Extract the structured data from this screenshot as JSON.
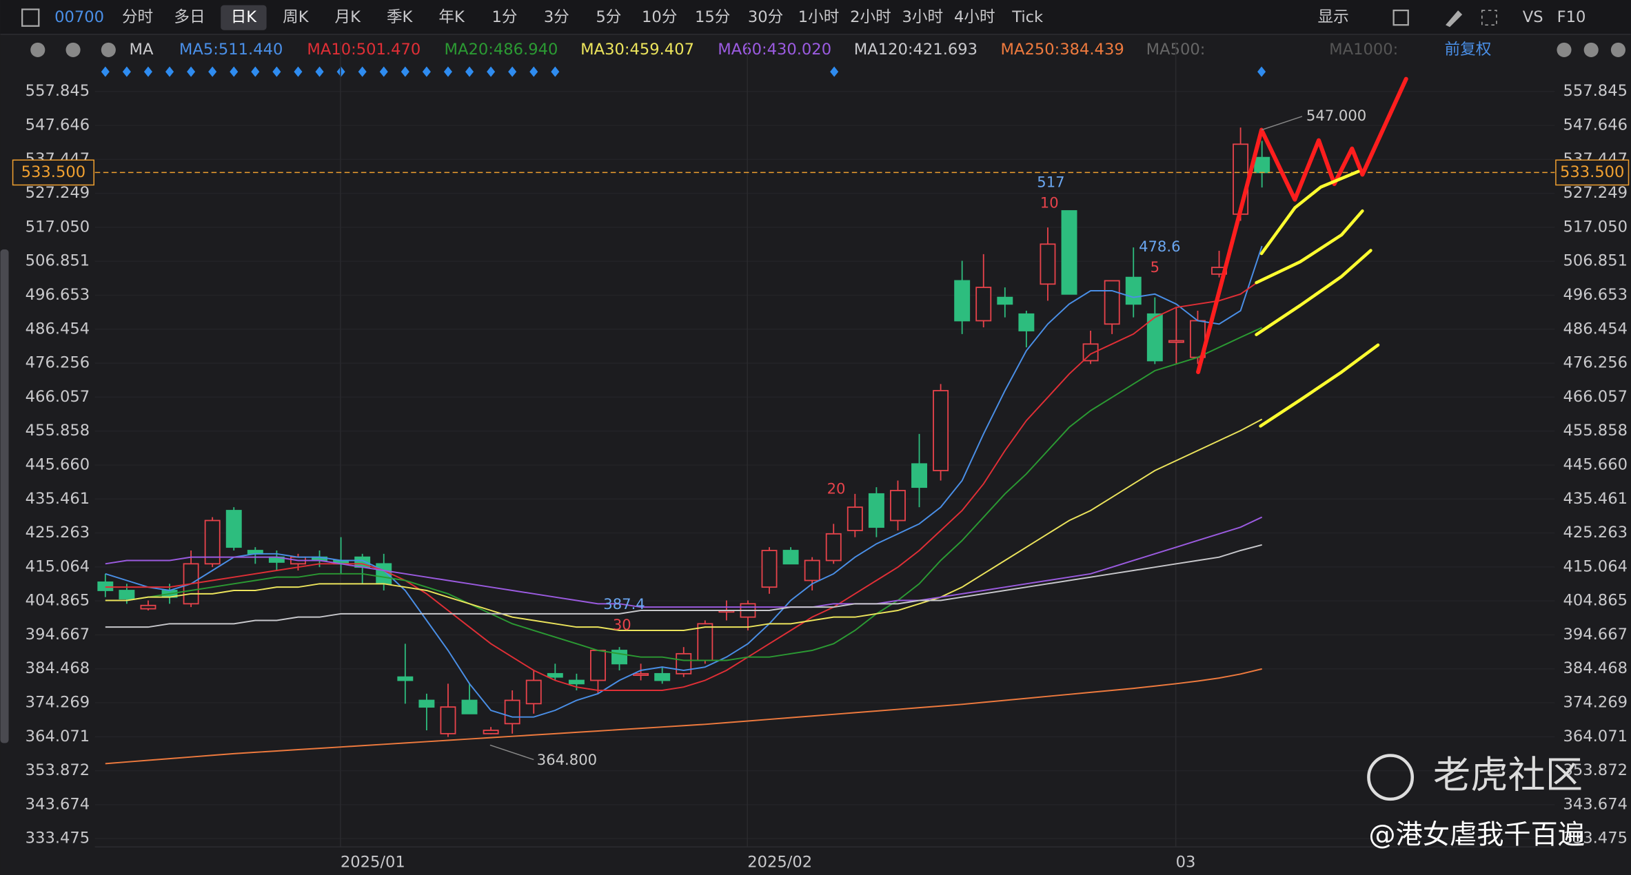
{
  "toolbar": {
    "symbol": "00700",
    "periods": [
      "分时",
      "多日",
      "日K",
      "周K",
      "月K",
      "季K",
      "年K",
      "1分",
      "3分",
      "5分",
      "10分",
      "15分",
      "30分",
      "1小时",
      "2小时",
      "3小时",
      "4小时",
      "Tick"
    ],
    "right": [
      "显示",
      "VS",
      "F10"
    ]
  },
  "ma_bar": {
    "label": "MA",
    "inactive": [
      "MA500:",
      "MA1000:"
    ],
    "adjust": "前复权"
  },
  "watermark": {
    "brand": "老虎社区",
    "user": "@港女虐我千百遍"
  },
  "chart_data": {
    "type": "candlestick",
    "grid": true,
    "categories": [
      null,
      null,
      null,
      null,
      null,
      null,
      null,
      null,
      null,
      null,
      null,
      "2025/01",
      null,
      null,
      null,
      null,
      null,
      null,
      null,
      null,
      null,
      null,
      null,
      null,
      null,
      null,
      null,
      null,
      null,
      null,
      "2025/02",
      null,
      null,
      null,
      null,
      null,
      null,
      null,
      null,
      null,
      null,
      null,
      null,
      null,
      null,
      null,
      null,
      null,
      null,
      null,
      "03",
      null,
      null,
      null,
      null
    ],
    "open": [
      410.5,
      408,
      402.5,
      408,
      404,
      416,
      432,
      420,
      418,
      416,
      418,
      417,
      418,
      416,
      382,
      375,
      365,
      375,
      365,
      368,
      374,
      383,
      381,
      381,
      390,
      383,
      383,
      383,
      387,
      402,
      400,
      409,
      420,
      411,
      417,
      426,
      437,
      429,
      446,
      444,
      501,
      489,
      496,
      491,
      500,
      522,
      477,
      488,
      502,
      491,
      483,
      478,
      503,
      521,
      538
    ],
    "high": [
      413,
      410,
      405,
      410,
      420,
      430,
      433,
      421,
      420,
      419,
      420,
      424,
      419,
      419,
      392,
      377,
      380,
      380,
      367,
      378,
      384,
      386,
      383,
      390,
      391,
      386,
      385,
      391,
      399,
      405,
      405,
      421,
      421,
      418,
      428,
      437,
      439,
      441,
      455,
      470,
      507,
      509,
      499,
      492,
      517,
      522,
      486,
      500,
      511,
      496,
      493,
      492,
      510,
      547,
      543
    ],
    "low": [
      406,
      404,
      402,
      404,
      403,
      415,
      420,
      416,
      414,
      414,
      415,
      413,
      410,
      408,
      374,
      366,
      364,
      371,
      364.8,
      365,
      371,
      381,
      378,
      377,
      384,
      381,
      380,
      382,
      386,
      399,
      396,
      407,
      416,
      408,
      416,
      424,
      424,
      426,
      433,
      441,
      485,
      487,
      490,
      481,
      495,
      497,
      476,
      485,
      490,
      476,
      476,
      476,
      502,
      519,
      529
    ],
    "close": [
      408,
      405.5,
      403.5,
      406,
      416,
      429,
      421,
      419,
      416.5,
      418,
      417,
      416,
      415,
      410,
      381,
      373,
      373,
      371,
      366,
      375,
      381,
      382,
      380,
      390,
      386,
      383,
      381,
      389,
      398,
      402,
      404,
      420,
      416,
      417,
      425,
      433,
      427,
      438,
      439,
      468,
      489,
      499,
      494,
      486,
      512,
      497,
      482,
      501,
      494,
      477,
      483,
      489,
      505,
      542,
      533.5
    ],
    "up_color": "#e8434b",
    "down_color": "#2dbd7e",
    "series": [
      {
        "name": "MA5:511.440",
        "color": "#4a8fe7",
        "values": [
          413,
          411,
          409,
          408,
          410,
          414,
          418,
          419,
          419,
          418,
          418,
          417,
          417,
          414,
          408,
          399,
          390,
          380,
          372,
          370,
          370,
          372,
          375,
          377,
          381,
          384,
          385,
          384,
          385,
          388,
          392,
          398,
          405,
          410,
          413,
          418,
          422,
          425,
          428,
          433,
          441,
          455,
          468,
          480,
          488,
          494,
          498,
          498,
          496,
          497,
          494,
          489,
          488,
          492,
          511.44
        ]
      },
      {
        "name": "MA10:501.470",
        "color": "#e02f36",
        "values": [
          409,
          409,
          409,
          409,
          410,
          411,
          412,
          413,
          414,
          415,
          416,
          416,
          416,
          414,
          411,
          407,
          402,
          397,
          392,
          388,
          384,
          381,
          379,
          378,
          378,
          378,
          378,
          379,
          381,
          384,
          388,
          392,
          396,
          400,
          403,
          407,
          411,
          415,
          420,
          426,
          432,
          440,
          450,
          459,
          466,
          473,
          479,
          482,
          485,
          490,
          493,
          494,
          495,
          497,
          501.47
        ]
      },
      {
        "name": "MA20:486.940",
        "color": "#2b9a33",
        "values": [
          405,
          405,
          406,
          407,
          408,
          409,
          410,
          411,
          412,
          412,
          413,
          413,
          413,
          412,
          411,
          409,
          407,
          404,
          401,
          398,
          396,
          394,
          392,
          390,
          389,
          388,
          388,
          387,
          387,
          387,
          388,
          388,
          389,
          390,
          392,
          396,
          401,
          405,
          410,
          417,
          423,
          430,
          437,
          443,
          450,
          457,
          462,
          466,
          470,
          474,
          476,
          478,
          481,
          484,
          486.94
        ]
      },
      {
        "name": "MA30:459.407",
        "color": "#ece45c",
        "values": [
          405,
          405,
          406,
          406,
          407,
          407,
          408,
          408,
          409,
          409,
          410,
          410,
          410,
          410,
          409,
          408,
          406,
          404,
          402,
          400,
          399,
          398,
          397,
          397,
          396,
          396,
          396,
          396,
          397,
          397,
          397,
          398,
          398,
          399,
          400,
          400,
          401,
          402,
          404,
          406,
          409,
          413,
          417,
          421,
          425,
          429,
          432,
          436,
          440,
          444,
          447,
          450,
          453,
          456,
          459.407
        ]
      },
      {
        "name": "MA60:430.020",
        "color": "#9b5be0",
        "values": [
          416,
          417,
          417,
          417,
          418,
          418,
          418,
          418,
          418,
          417,
          417,
          416,
          415,
          414,
          413,
          412,
          411,
          410,
          409,
          408,
          407,
          406,
          405,
          404,
          404,
          403,
          403,
          403,
          403,
          403,
          403,
          403,
          403,
          403,
          404,
          404,
          404,
          405,
          405,
          406,
          407,
          408,
          409,
          410,
          411,
          412,
          413,
          415,
          417,
          419,
          421,
          423,
          425,
          427,
          430.02
        ]
      },
      {
        "name": "MA120:421.693",
        "color": "#c8c8cc",
        "values": [
          397,
          397,
          397,
          398,
          398,
          398,
          398,
          399,
          399,
          400,
          400,
          401,
          401,
          401,
          401,
          401,
          401,
          401,
          401,
          401,
          401,
          401,
          401,
          401,
          401,
          402,
          402,
          402,
          402,
          402,
          402,
          402,
          403,
          403,
          403,
          404,
          404,
          404,
          405,
          405,
          406,
          407,
          408,
          409,
          410,
          411,
          412,
          413,
          414,
          415,
          416,
          417,
          418,
          420,
          421.693
        ]
      },
      {
        "name": "MA250:384.439",
        "color": "#ee7a3e",
        "values": [
          356,
          356.5,
          357,
          357.5,
          358,
          358.5,
          359,
          359.4,
          359.8,
          360.2,
          360.6,
          361,
          361.4,
          361.8,
          362.2,
          362.6,
          363,
          363.4,
          363.8,
          364.2,
          364.6,
          365,
          365.4,
          365.8,
          366.2,
          366.6,
          367,
          367.4,
          367.8,
          368.3,
          368.8,
          369.3,
          369.8,
          370.3,
          370.8,
          371.3,
          371.8,
          372.3,
          372.8,
          373.3,
          373.8,
          374.4,
          375,
          375.6,
          376.2,
          376.8,
          377.4,
          378,
          378.6,
          379.3,
          380,
          380.8,
          381.7,
          382.9,
          384.439
        ]
      }
    ],
    "ylim": [
      330.98,
      561.9
    ],
    "yticks": [
      557.845,
      547.646,
      537.447,
      527.249,
      {
        "value": 517.05,
        "label": "517.050"
      },
      506.851,
      496.653,
      486.454,
      476.256,
      466.057,
      455.858,
      {
        "value": 445.66,
        "label": "445.660"
      },
      435.461,
      425.263,
      415.064,
      404.865,
      394.667,
      384.468,
      374.269,
      364.071,
      353.872,
      343.674,
      333.475
    ],
    "last_price": {
      "value": 533.5,
      "label": "533.500",
      "color": "#f0a030"
    },
    "annotations": [
      "547.000",
      "364.800",
      "387.4",
      "30",
      "517",
      "10",
      "478.6",
      "5",
      "20"
    ]
  }
}
